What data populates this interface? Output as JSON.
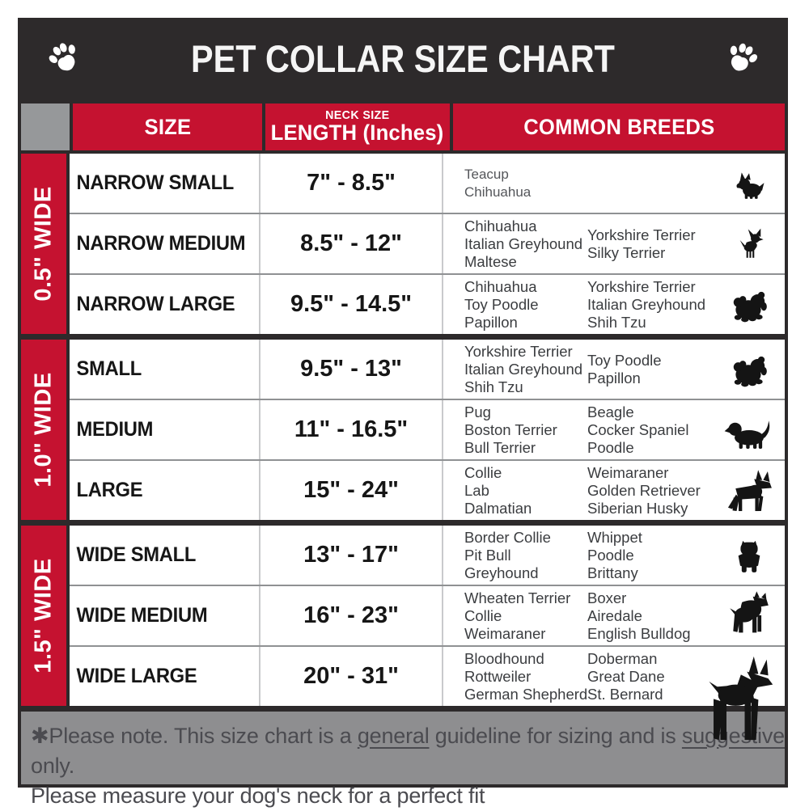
{
  "title": "PET COLLAR SIZE CHART",
  "columns": {
    "size": "SIZE",
    "neck_top": "NECK SIZE",
    "neck_main": "LENGTH (Inches)",
    "breeds": "COMMON BREEDS"
  },
  "groups": [
    {
      "width_label": "0.5\" WIDE",
      "rows": [
        {
          "size": "NARROW SMALL",
          "neck": "7\" - 8.5\"",
          "breeds1": [
            "Teacup",
            "Chihuahua"
          ],
          "breeds2": [],
          "icon": "yorkshire-terrier"
        },
        {
          "size": "NARROW MEDIUM",
          "neck": "8.5\" - 12\"",
          "breeds1": [
            "Chihuahua",
            "Italian Greyhound",
            "Maltese"
          ],
          "breeds2": [
            "Yorkshire Terrier",
            "Silky Terrier"
          ],
          "icon": "chihuahua"
        },
        {
          "size": "NARROW LARGE",
          "neck": "9.5\" - 14.5\"",
          "breeds1": [
            "Chihuahua",
            "Toy Poodle",
            "Papillon"
          ],
          "breeds2": [
            "Yorkshire Terrier",
            "Italian Greyhound",
            "Shih Tzu"
          ],
          "icon": "shih-tzu"
        }
      ]
    },
    {
      "width_label": "1.0\" WIDE",
      "rows": [
        {
          "size": "SMALL",
          "neck": "9.5\" - 13\"",
          "breeds1": [
            "Yorkshire Terrier",
            "Italian Greyhound",
            "Shih Tzu"
          ],
          "breeds2": [
            "Toy Poodle",
            "Papillon"
          ],
          "icon": "pekingese"
        },
        {
          "size": "MEDIUM",
          "neck": "11\" - 16.5\"",
          "breeds1": [
            "Pug",
            "Boston Terrier",
            "Bull Terrier"
          ],
          "breeds2": [
            "Beagle",
            "Cocker Spaniel",
            "Poodle"
          ],
          "icon": "beagle"
        },
        {
          "size": "LARGE",
          "neck": "15\" - 24\"",
          "breeds1": [
            "Collie",
            "Lab",
            "Dalmatian"
          ],
          "breeds2": [
            "Weimaraner",
            "Golden Retriever",
            "Siberian Husky"
          ],
          "icon": "german-shepherd"
        }
      ]
    },
    {
      "width_label": "1.5\" WIDE",
      "rows": [
        {
          "size": "WIDE SMALL",
          "neck": "13\" - 17\"",
          "breeds1": [
            "Border Collie",
            "Pit Bull",
            "Greyhound"
          ],
          "breeds2": [
            "Whippet",
            "Poodle",
            "Brittany"
          ],
          "icon": "bulldog"
        },
        {
          "size": "WIDE MEDIUM",
          "neck": "16\" - 23\"",
          "breeds1": [
            "Wheaten Terrier",
            "Collie",
            "Weimaraner"
          ],
          "breeds2": [
            "Boxer",
            "Airedale",
            "English Bulldog"
          ],
          "icon": "pit-bull"
        },
        {
          "size": "WIDE LARGE",
          "neck": "20\" - 31\"",
          "breeds1": [
            "Bloodhound",
            "Rottweiler",
            "German Shepherd"
          ],
          "breeds2": [
            "Doberman",
            "Great Dane",
            "St. Bernard"
          ],
          "icon": "doberman"
        }
      ]
    }
  ],
  "footer": {
    "line1": [
      {
        "text": "✱Please note. This size chart is a ",
        "u": false
      },
      {
        "text": "general",
        "u": true
      },
      {
        "text": " guideline for sizing and is ",
        "u": false
      },
      {
        "text": "suggestive",
        "u": true
      },
      {
        "text": " only.",
        "u": false
      }
    ],
    "line2": "Please measure your dog's neck for a perfect fit"
  },
  "colors": {
    "accent_red": "#c51230",
    "header_dark": "#2d2a2b",
    "corner_gray": "#96989a",
    "footer_gray": "#8e8e90"
  }
}
